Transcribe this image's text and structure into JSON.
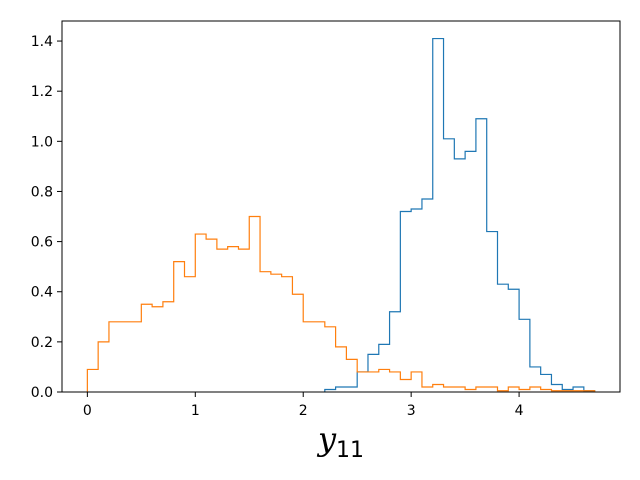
{
  "chart_data": {
    "type": "histogram",
    "xlabel": "y",
    "xlabel_subscript": "11",
    "ylabel": "",
    "title": "",
    "xlim": [
      -0.235,
      4.935
    ],
    "ylim": [
      0,
      1.48
    ],
    "grid": false,
    "legend": "none",
    "xticks": [
      0,
      1,
      2,
      3,
      4
    ],
    "yticks": [
      0.0,
      0.2,
      0.4,
      0.6,
      0.8,
      1.0,
      1.2,
      1.4
    ],
    "xtick_labels": [
      "0",
      "1",
      "2",
      "3",
      "4"
    ],
    "ytick_labels": [
      "0.0",
      "0.2",
      "0.4",
      "0.6",
      "0.8",
      "1.0",
      "1.2",
      "1.4"
    ],
    "series": [
      {
        "color": "#1f77b4",
        "edges": [
          2.2,
          2.3,
          2.4,
          2.5,
          2.6,
          2.7,
          2.8,
          2.9,
          3.0,
          3.1,
          3.2,
          3.3,
          3.4,
          3.5,
          3.6,
          3.7,
          3.8,
          3.9,
          4.0,
          4.1,
          4.2,
          4.3,
          4.4,
          4.5,
          4.6,
          4.7
        ],
        "values": [
          0.01,
          0.02,
          0.02,
          0.08,
          0.15,
          0.19,
          0.32,
          0.72,
          0.73,
          0.77,
          1.41,
          1.01,
          0.93,
          0.96,
          1.09,
          0.64,
          0.43,
          0.41,
          0.29,
          0.1,
          0.07,
          0.03,
          0.01,
          0.02,
          0.005
        ]
      },
      {
        "color": "#ff7f0e",
        "edges": [
          0.0,
          0.1,
          0.2,
          0.3,
          0.4,
          0.5,
          0.6,
          0.7,
          0.8,
          0.9,
          1.0,
          1.1,
          1.2,
          1.3,
          1.4,
          1.5,
          1.6,
          1.7,
          1.8,
          1.9,
          2.0,
          2.1,
          2.2,
          2.3,
          2.4,
          2.5,
          2.6,
          2.7,
          2.8,
          2.9,
          3.0,
          3.1,
          3.2,
          3.3,
          3.4,
          3.5,
          3.6,
          3.7,
          3.8,
          3.9,
          4.0,
          4.1,
          4.2,
          4.3,
          4.4,
          4.5,
          4.6,
          4.7
        ],
        "values": [
          0.09,
          0.2,
          0.28,
          0.28,
          0.28,
          0.35,
          0.34,
          0.36,
          0.52,
          0.46,
          0.63,
          0.61,
          0.57,
          0.58,
          0.57,
          0.7,
          0.48,
          0.47,
          0.46,
          0.39,
          0.28,
          0.28,
          0.26,
          0.18,
          0.13,
          0.08,
          0.08,
          0.09,
          0.08,
          0.05,
          0.08,
          0.02,
          0.03,
          0.02,
          0.02,
          0.01,
          0.02,
          0.02,
          0.005,
          0.02,
          0.01,
          0.02,
          0.01,
          0.005,
          0.005,
          0.005,
          0.005
        ]
      }
    ]
  }
}
